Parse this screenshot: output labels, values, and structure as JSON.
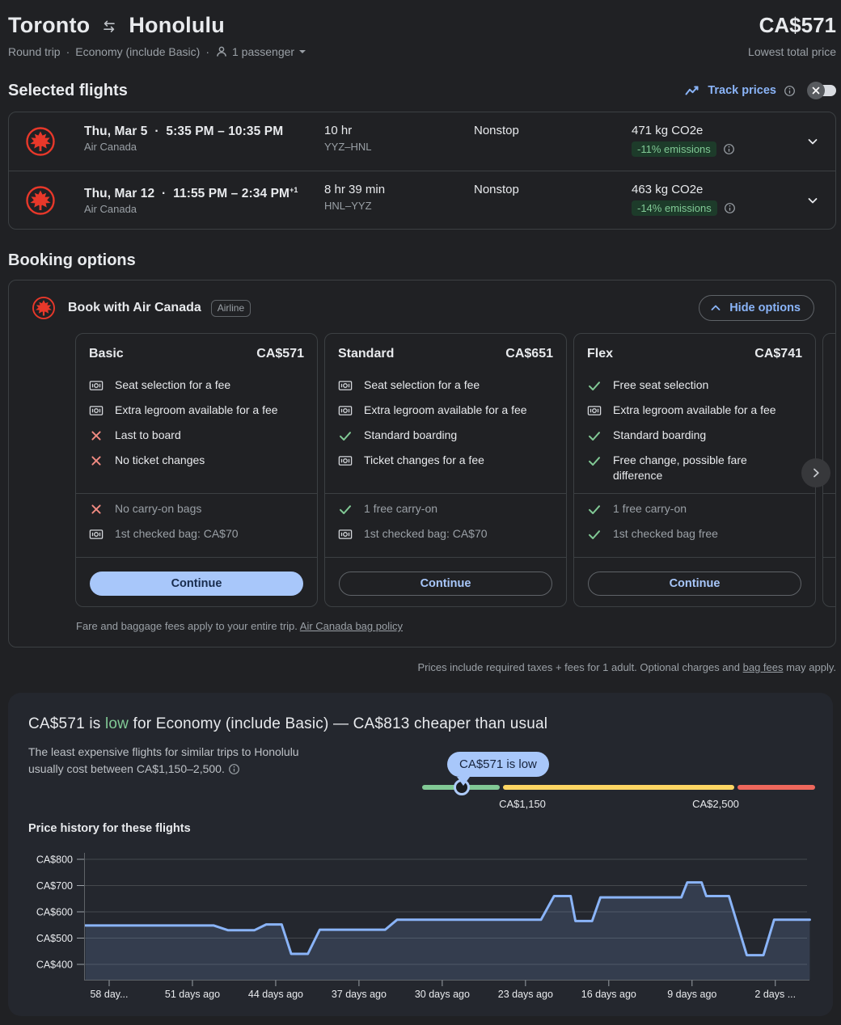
{
  "header": {
    "origin": "Toronto",
    "destination": "Honolulu",
    "price": "CA$571",
    "price_note": "Lowest total price",
    "trip_type": "Round trip",
    "cabin": "Economy (include Basic)",
    "passengers": "1 passenger"
  },
  "selected": {
    "title": "Selected flights",
    "track_label": "Track prices",
    "flights": [
      {
        "airline": "Air Canada",
        "date": "Thu, Mar 5",
        "times": "5:35 PM – 10:35 PM",
        "sup": "",
        "duration": "10 hr",
        "route": "YYZ–HNL",
        "stops": "Nonstop",
        "co2": "471 kg CO2e",
        "badge": "-11% emissions"
      },
      {
        "airline": "Air Canada",
        "date": "Thu, Mar 12",
        "times": "11:55 PM – 2:34 PM",
        "sup": "+1",
        "duration": "8 hr 39 min",
        "route": "HNL–YYZ",
        "stops": "Nonstop",
        "co2": "463 kg CO2e",
        "badge": "-14% emissions"
      }
    ]
  },
  "booking": {
    "title": "Booking options",
    "book_with": "Book with Air Canada",
    "badge": "Airline",
    "hide_options": "Hide options",
    "fares": [
      {
        "name": "Basic",
        "price": "CA$571",
        "primary": true,
        "cta": "Continue",
        "features": [
          {
            "icon": "money",
            "text": "Seat selection for a fee"
          },
          {
            "icon": "money",
            "text": "Extra legroom available for a fee"
          },
          {
            "icon": "cross",
            "text": "Last to board"
          },
          {
            "icon": "cross",
            "text": "No ticket changes"
          }
        ],
        "baggage": [
          {
            "icon": "cross",
            "text": "No carry-on bags"
          },
          {
            "icon": "money",
            "text": "1st checked bag: CA$70"
          }
        ]
      },
      {
        "name": "Standard",
        "price": "CA$651",
        "primary": false,
        "cta": "Continue",
        "features": [
          {
            "icon": "money",
            "text": "Seat selection for a fee"
          },
          {
            "icon": "money",
            "text": "Extra legroom available for a fee"
          },
          {
            "icon": "check",
            "text": "Standard boarding"
          },
          {
            "icon": "money",
            "text": "Ticket changes for a fee"
          }
        ],
        "baggage": [
          {
            "icon": "check",
            "text": "1 free carry-on"
          },
          {
            "icon": "money",
            "text": "1st checked bag: CA$70"
          }
        ]
      },
      {
        "name": "Flex",
        "price": "CA$741",
        "primary": false,
        "cta": "Continue",
        "features": [
          {
            "icon": "check",
            "text": "Free seat selection"
          },
          {
            "icon": "money",
            "text": "Extra legroom available for a fee"
          },
          {
            "icon": "check",
            "text": "Standard boarding"
          },
          {
            "icon": "check",
            "text": "Free change, possible fare difference"
          }
        ],
        "baggage": [
          {
            "icon": "check",
            "text": "1 free carry-on"
          },
          {
            "icon": "check",
            "text": "1st checked bag free"
          }
        ]
      }
    ],
    "footnote": "Fare and baggage fees apply to your entire trip. ",
    "footnote_link": "Air Canada bag policy"
  },
  "prices_note": {
    "prefix": "Prices include required taxes + fees for 1 adult. Optional charges and ",
    "link": "bag fees",
    "suffix": " may apply."
  },
  "insights": {
    "title_prefix": "CA$571 is ",
    "title_low": "low",
    "title_suffix": " for Economy (include Basic) — CA$813 cheaper than usual",
    "body_line1": "The least expensive flights for similar trips to Honolulu",
    "body_line2": "usually cost between CA$1,150–2,500.",
    "tooltip": "CA$571 is low",
    "slider_low_label": "CA$1,150",
    "slider_high_label": "CA$2,500",
    "slider_colors": {
      "low": "#81c995",
      "typical": "#fdd663",
      "high": "#ee675c"
    },
    "history_title": "Price history for these flights"
  },
  "chart_data": {
    "type": "line",
    "title": "Price history for these flights",
    "y_axis": {
      "min": 400,
      "max": 800,
      "step": 100,
      "tick_prefix": "CA$"
    },
    "x_axis": {
      "unit": "days ago",
      "ticks": [
        58,
        51,
        44,
        37,
        30,
        23,
        16,
        9,
        2
      ],
      "tick_labels": [
        "58 day...",
        "51 days ago",
        "44 days ago",
        "37 days ago",
        "30 days ago",
        "23 days ago",
        "16 days ago",
        "9 days ago",
        "2 days ..."
      ]
    },
    "grid": true,
    "legend": false,
    "line_color": "#8ab4f8",
    "fill_color": "rgba(138,180,248,0.16)",
    "series": [
      {
        "name": "Price (CA$)",
        "points": [
          [
            60,
            548
          ],
          [
            49.2,
            548
          ],
          [
            48,
            530
          ],
          [
            45.8,
            530
          ],
          [
            44.8,
            552
          ],
          [
            43.5,
            552
          ],
          [
            42.7,
            440
          ],
          [
            41.3,
            440
          ],
          [
            40.3,
            532
          ],
          [
            34.8,
            532
          ],
          [
            33.8,
            570
          ],
          [
            21.7,
            570
          ],
          [
            20.6,
            660
          ],
          [
            19.2,
            660
          ],
          [
            18.8,
            565
          ],
          [
            17.4,
            565
          ],
          [
            16.7,
            655
          ],
          [
            9.9,
            655
          ],
          [
            9.4,
            712
          ],
          [
            8.2,
            712
          ],
          [
            7.8,
            660
          ],
          [
            5.9,
            660
          ],
          [
            4.4,
            435
          ],
          [
            3,
            435
          ],
          [
            2.1,
            570
          ],
          [
            -0.9,
            570
          ]
        ]
      }
    ]
  }
}
